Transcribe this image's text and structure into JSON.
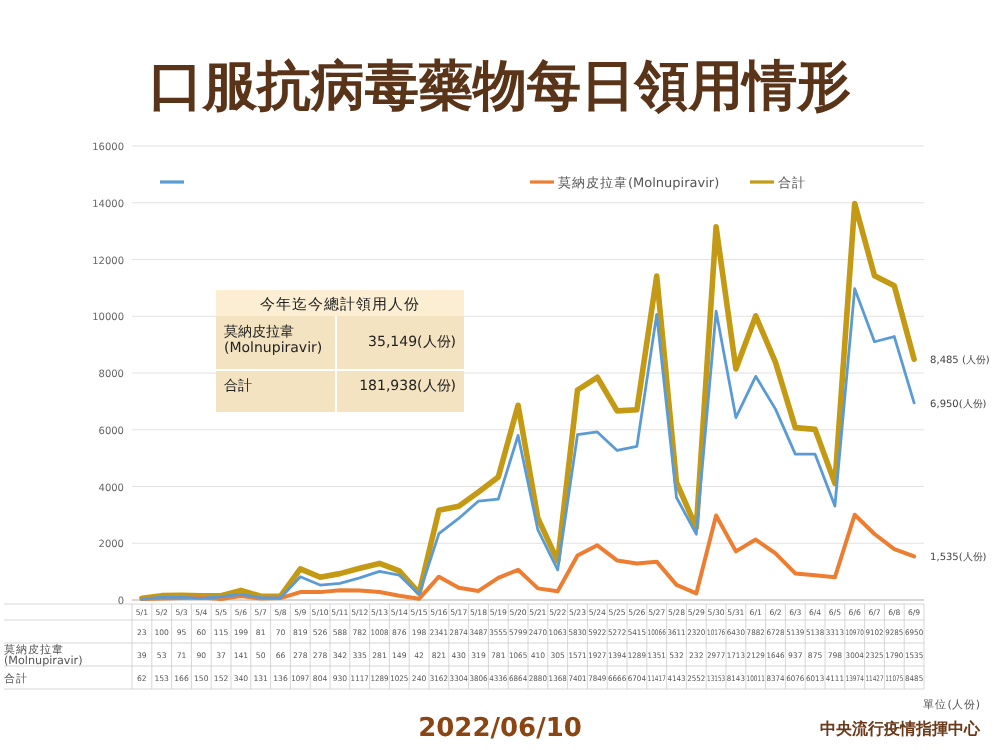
{
  "chart_data": {
    "type": "line",
    "title": "口服抗病毒藥物每日領用情形",
    "categories": [
      "5/1",
      "5/2",
      "5/3",
      "5/4",
      "5/5",
      "5/6",
      "5/7",
      "5/8",
      "5/9",
      "5/10",
      "5/11",
      "5/12",
      "5/13",
      "5/14",
      "5/15",
      "5/16",
      "5/17",
      "5/18",
      "5/19",
      "5/20",
      "5/21",
      "5/22",
      "5/23",
      "5/24",
      "5/25",
      "5/26",
      "5/27",
      "5/28",
      "5/29",
      "5/30",
      "5/31",
      "6/1",
      "6/2",
      "6/3",
      "6/4",
      "6/5",
      "6/6",
      "6/7",
      "6/8",
      "6/9"
    ],
    "series": [
      {
        "color": "#5b9bd5",
        "values": [
          23,
          100,
          95,
          60,
          115,
          199,
          81,
          70,
          819,
          526,
          588,
          782,
          1008,
          876,
          198,
          2341,
          2874,
          3487,
          3555,
          5799,
          2470,
          1063,
          5830,
          5922,
          5272,
          5415,
          10066,
          3611,
          2320,
          10176,
          6430,
          7882,
          6728,
          5139,
          5138,
          3313,
          10970,
          9102,
          9285,
          6950
        ]
      },
      {
        "name": "莫納皮拉韋(Molnupiravir)",
        "color": "#ed7d31",
        "values": [
          39,
          53,
          71,
          90,
          37,
          141,
          50,
          66,
          278,
          278,
          342,
          335,
          281,
          149,
          42,
          821,
          430,
          319,
          781,
          1065,
          410,
          305,
          1571,
          1927,
          1394,
          1289,
          1351,
          532,
          232,
          2977,
          1713,
          2129,
          1646,
          937,
          875,
          798,
          3004,
          2325,
          1790,
          1535
        ]
      },
      {
        "name": "合計",
        "color": "#c49a14",
        "values": [
          62,
          153,
          166,
          150,
          152,
          340,
          131,
          136,
          1097,
          804,
          930,
          1117,
          1289,
          1025,
          240,
          3162,
          3304,
          3806,
          4336,
          6864,
          2880,
          1368,
          7401,
          7849,
          6666,
          6704,
          11417,
          4143,
          2552,
          13153,
          8143,
          10011,
          8374,
          6076,
          6013,
          4111,
          13974,
          11427,
          11075,
          8485
        ]
      }
    ],
    "ylim": [
      0,
      16000
    ],
    "yticks": [
      0,
      2000,
      4000,
      6000,
      8000,
      10000,
      12000,
      14000,
      16000
    ],
    "grid": "y",
    "legend": "top",
    "marker": "none",
    "line_style": "solid",
    "data_labels": true,
    "annotations": [
      "今年迄今總計領用人份",
      "莫納皮拉韋\n(Molnupiravir)",
      "35,149(人份)",
      "合計",
      "181,938(人份)",
      "單位(人份)",
      "2022/06/10",
      "中央流行疫情指揮中心",
      {
        "text": "8,485 (人份)",
        "x": "6/9",
        "y": 8485
      },
      {
        "text": "6,950(人份)",
        "x": "6/9",
        "y": 6950
      },
      {
        "text": "1,535(人份)",
        "x": "6/9",
        "y": 1535
      }
    ]
  }
}
